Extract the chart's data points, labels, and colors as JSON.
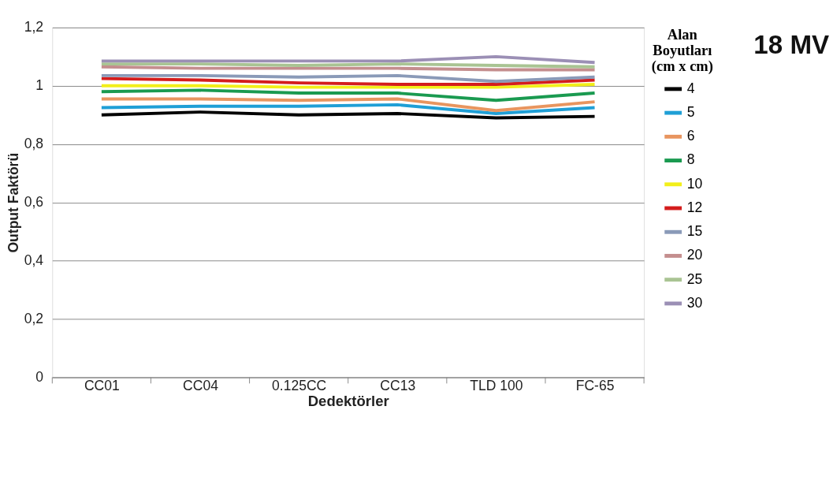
{
  "chart_data": {
    "type": "line",
    "title": "18 MV",
    "xlabel": "Dedektörler",
    "ylabel": "Output Faktörü",
    "legend_title": "Alan\nBoyutları\n(cm x cm)",
    "categories": [
      "CC01",
      "CC04",
      "0.125CC",
      "CC13",
      "TLD 100",
      "FC-65"
    ],
    "ylim": [
      0,
      1.2
    ],
    "yticks": [
      {
        "value": 0,
        "label": "0"
      },
      {
        "value": 0.2,
        "label": "0,2"
      },
      {
        "value": 0.4,
        "label": "0,4"
      },
      {
        "value": 0.6,
        "label": "0,6"
      },
      {
        "value": 0.8,
        "label": "0,8"
      },
      {
        "value": 1,
        "label": "1"
      },
      {
        "value": 1.2,
        "label": "1,2"
      }
    ],
    "grid": "y",
    "legend": "right",
    "marker": "none",
    "line_style": "solid",
    "series": [
      {
        "name": "4",
        "color": "#000000",
        "values": [
          0.9,
          0.91,
          0.9,
          0.905,
          0.89,
          0.895
        ]
      },
      {
        "name": "5",
        "color": "#1f9fd6",
        "values": [
          0.925,
          0.93,
          0.93,
          0.935,
          0.905,
          0.925
        ]
      },
      {
        "name": "6",
        "color": "#e8955f",
        "values": [
          0.955,
          0.955,
          0.95,
          0.955,
          0.915,
          0.945
        ]
      },
      {
        "name": "8",
        "color": "#1a9a50",
        "values": [
          0.98,
          0.985,
          0.975,
          0.975,
          0.95,
          0.975
        ]
      },
      {
        "name": "10",
        "color": "#f2ef1a",
        "values": [
          1.0,
          1.0,
          0.995,
          0.995,
          0.995,
          1.005
        ]
      },
      {
        "name": "12",
        "color": "#d41d1d",
        "values": [
          1.025,
          1.02,
          1.01,
          1.005,
          1.005,
          1.02
        ]
      },
      {
        "name": "15",
        "color": "#8a9ab8",
        "values": [
          1.035,
          1.035,
          1.03,
          1.035,
          1.015,
          1.03
        ]
      },
      {
        "name": "20",
        "color": "#c48e8e",
        "values": [
          1.065,
          1.06,
          1.06,
          1.06,
          1.055,
          1.055
        ]
      },
      {
        "name": "25",
        "color": "#a9c493",
        "values": [
          1.075,
          1.075,
          1.07,
          1.075,
          1.07,
          1.065
        ]
      },
      {
        "name": "30",
        "color": "#9b8fb5",
        "values": [
          1.085,
          1.085,
          1.085,
          1.085,
          1.1,
          1.08
        ]
      }
    ]
  }
}
